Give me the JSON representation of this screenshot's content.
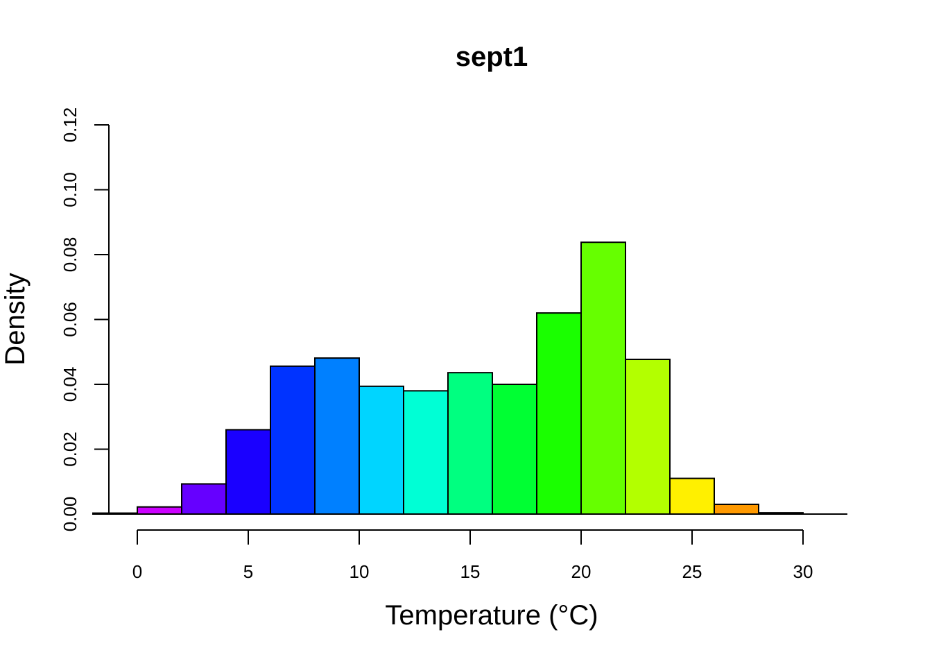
{
  "chart_data": {
    "type": "bar",
    "title": "sept1",
    "xlabel": "Temperature (°C)",
    "ylabel": "Density",
    "xlim": [
      -1.3,
      32
    ],
    "ylim": [
      0,
      0.12
    ],
    "x_ticks": [
      0,
      5,
      10,
      15,
      20,
      25,
      30
    ],
    "y_ticks": [
      0.0,
      0.02,
      0.04,
      0.06,
      0.08,
      0.1,
      0.12
    ],
    "x_tick_labels": [
      "0",
      "5",
      "10",
      "15",
      "20",
      "25",
      "30"
    ],
    "y_tick_labels": [
      "0.00",
      "0.02",
      "0.04",
      "0.06",
      "0.08",
      "0.10",
      "0.12"
    ],
    "grid": false,
    "legend": "none",
    "bins": [
      {
        "x0": -2,
        "x1": 0,
        "density": 0.0003,
        "color": "#000000"
      },
      {
        "x0": 0,
        "x1": 2,
        "density": 0.0022,
        "color": "#CC00FF"
      },
      {
        "x0": 2,
        "x1": 4,
        "density": 0.0093,
        "color": "#6600FF"
      },
      {
        "x0": 4,
        "x1": 6,
        "density": 0.026,
        "color": "#1A00FF"
      },
      {
        "x0": 6,
        "x1": 8,
        "density": 0.0456,
        "color": "#0033FF"
      },
      {
        "x0": 8,
        "x1": 10,
        "density": 0.0481,
        "color": "#0080FF"
      },
      {
        "x0": 10,
        "x1": 12,
        "density": 0.0394,
        "color": "#00D5FF"
      },
      {
        "x0": 12,
        "x1": 14,
        "density": 0.038,
        "color": "#00FFD5"
      },
      {
        "x0": 14,
        "x1": 16,
        "density": 0.0436,
        "color": "#00FF80"
      },
      {
        "x0": 16,
        "x1": 18,
        "density": 0.04,
        "color": "#00FF33"
      },
      {
        "x0": 18,
        "x1": 20,
        "density": 0.062,
        "color": "#1AFF00"
      },
      {
        "x0": 20,
        "x1": 22,
        "density": 0.0838,
        "color": "#66FF00"
      },
      {
        "x0": 22,
        "x1": 24,
        "density": 0.0477,
        "color": "#B3FF00"
      },
      {
        "x0": 24,
        "x1": 26,
        "density": 0.011,
        "color": "#FFF000"
      },
      {
        "x0": 26,
        "x1": 28,
        "density": 0.003,
        "color": "#FF9900"
      },
      {
        "x0": 28,
        "x1": 30,
        "density": 0.0004,
        "color": "#000000"
      },
      {
        "x0": 30,
        "x1": 32,
        "density": 0.0,
        "color": "#000000"
      }
    ]
  }
}
